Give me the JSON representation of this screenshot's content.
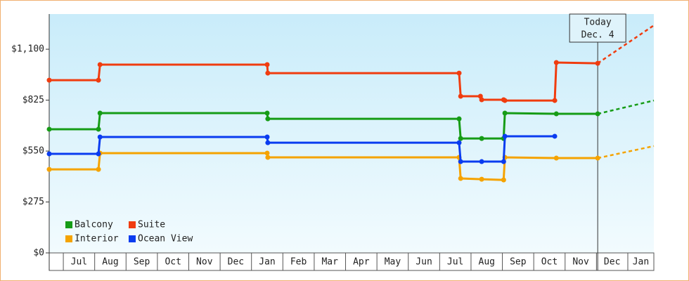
{
  "chart_data": {
    "type": "line",
    "categories": [
      "Jul",
      "Aug",
      "Sep",
      "Oct",
      "Nov",
      "Dec",
      "Jan",
      "Feb",
      "Mar",
      "Apr",
      "May",
      "Jun",
      "Jul",
      "Aug",
      "Sep",
      "Oct",
      "Nov",
      "Dec",
      "Jan"
    ],
    "xlim": [
      -0.45,
      18.83
    ],
    "ylim": [
      0,
      1290
    ],
    "yticks": [
      {
        "value": 0,
        "label": "$0"
      },
      {
        "value": 275,
        "label": "$275"
      },
      {
        "value": 550,
        "label": "$550"
      },
      {
        "value": 825,
        "label": "$825"
      },
      {
        "value": 1100,
        "label": "$1,100"
      }
    ],
    "annotation": {
      "lines": [
        "Today",
        "Dec. 4"
      ],
      "x": 17.04
    },
    "series": [
      {
        "name": "Balcony",
        "color": "#169c16",
        "x": [
          -0.45,
          1.12,
          1.17,
          6.5,
          6.52,
          12.62,
          12.67,
          13.34,
          14.04,
          14.08,
          15.72,
          17.04
        ],
        "values": [
          668,
          668,
          755,
          755,
          724,
          724,
          618,
          618,
          618,
          755,
          751,
          751
        ],
        "projected": {
          "x": [
            17.04,
            18.83
          ],
          "values": [
            751,
            823
          ]
        }
      },
      {
        "name": "Suite",
        "color": "#f03c0f",
        "x": [
          -0.45,
          1.12,
          1.17,
          6.5,
          6.52,
          12.62,
          12.67,
          13.3,
          13.34,
          14.04,
          14.08,
          15.67,
          15.72,
          17.04
        ],
        "values": [
          933,
          933,
          1017,
          1017,
          971,
          971,
          846,
          846,
          827,
          827,
          823,
          823,
          1028,
          1024
        ],
        "projected": {
          "x": [
            17.04,
            18.83
          ],
          "values": [
            1024,
            1229
          ]
        }
      },
      {
        "name": "Interior",
        "color": "#f5a300",
        "x": [
          -0.45,
          1.12,
          1.17,
          6.5,
          6.52,
          12.62,
          12.67,
          13.34,
          14.04,
          14.08,
          15.72,
          17.04
        ],
        "values": [
          451,
          451,
          539,
          539,
          516,
          516,
          402,
          398,
          394,
          516,
          512,
          512
        ],
        "projected": {
          "x": [
            17.04,
            18.83
          ],
          "values": [
            512,
            577
          ]
        }
      },
      {
        "name": "Ocean View",
        "color": "#0a3cf0",
        "x": [
          -0.45,
          1.12,
          1.17,
          6.5,
          6.52,
          12.62,
          12.67,
          13.34,
          14.04,
          14.08,
          15.67
        ],
        "values": [
          535,
          535,
          626,
          626,
          595,
          595,
          493,
          493,
          493,
          630,
          630
        ]
      }
    ]
  }
}
